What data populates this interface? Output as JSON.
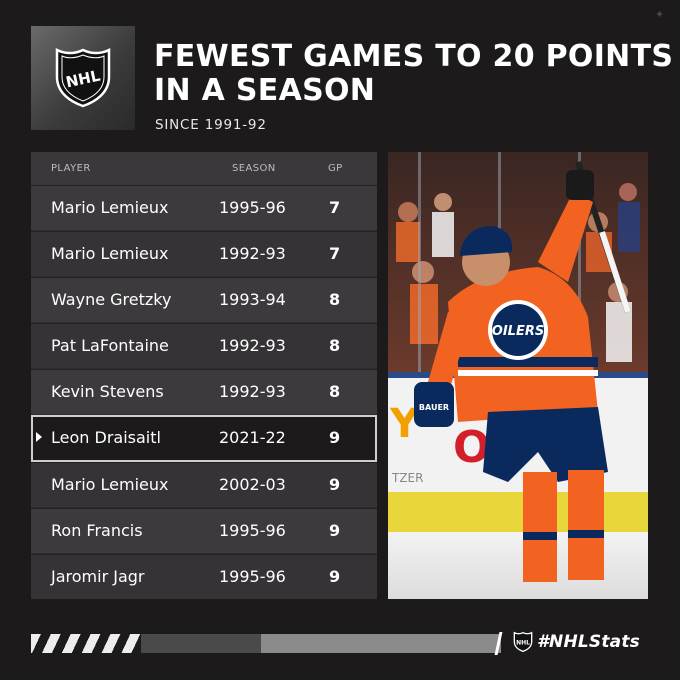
{
  "header": {
    "title_line1": "FEWEST GAMES TO 20 POINTS",
    "title_line2": "IN A SEASON",
    "subtitle": "SINCE 1991-92",
    "logo_text": "NHL"
  },
  "table": {
    "columns": {
      "player": "PLAYER",
      "season": "SEASON",
      "gp": "GP"
    },
    "rows": [
      {
        "player": "Mario Lemieux",
        "season": "1995-96",
        "gp": "7"
      },
      {
        "player": "Mario Lemieux",
        "season": "1992-93",
        "gp": "7"
      },
      {
        "player": "Wayne Gretzky",
        "season": "1993-94",
        "gp": "8"
      },
      {
        "player": "Pat LaFontaine",
        "season": "1992-93",
        "gp": "8"
      },
      {
        "player": "Kevin Stevens",
        "season": "1992-93",
        "gp": "8"
      },
      {
        "player": "Leon Draisaitl",
        "season": "2021-22",
        "gp": "9"
      },
      {
        "player": "Mario Lemieux",
        "season": "2002-03",
        "gp": "9"
      },
      {
        "player": "Ron Francis",
        "season": "1995-96",
        "gp": "9"
      },
      {
        "player": "Jaromir Jagr",
        "season": "1995-96",
        "gp": "9"
      }
    ],
    "highlighted_row": 5
  },
  "photo": {
    "jersey_logo": "OILERS",
    "glove_brand": "BAUER"
  },
  "footer": {
    "hashtag": "#NHLStats",
    "logo_text": "NHL"
  },
  "colors": {
    "background": "#1c1a1b",
    "oilers_orange": "#f26322",
    "oilers_blue": "#0a2a5e"
  },
  "icons": {
    "corner": "sparkle-icon"
  }
}
